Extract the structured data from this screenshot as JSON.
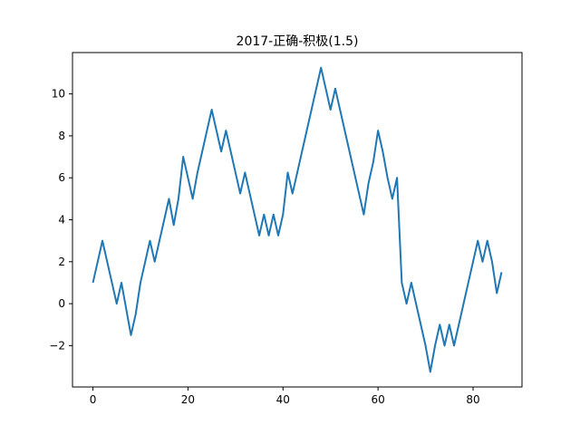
{
  "chart_data": {
    "type": "line",
    "title": "2017-正确-积极(1.5)",
    "xlabel": "",
    "ylabel": "",
    "xlim": [
      -4.3,
      90.3
    ],
    "ylim": [
      -3.97,
      11.97
    ],
    "xticks": [
      0,
      20,
      40,
      60,
      80
    ],
    "yticks": [
      -2,
      0,
      2,
      4,
      6,
      8,
      10
    ],
    "grid": false,
    "line_color": "#1f77b4",
    "series": [
      {
        "x": [
          0,
          1,
          2,
          3,
          4,
          5,
          6,
          7,
          8,
          9,
          10,
          11,
          12,
          13,
          14,
          15,
          16,
          17,
          18,
          19,
          20,
          21,
          22,
          23,
          24,
          25,
          26,
          27,
          28,
          29,
          30,
          31,
          32,
          33,
          34,
          35,
          36,
          37,
          38,
          39,
          40,
          41,
          42,
          43,
          44,
          45,
          46,
          47,
          48,
          49,
          50,
          51,
          52,
          53,
          54,
          55,
          56,
          57,
          58,
          59,
          60,
          61,
          62,
          63,
          64,
          65,
          66,
          67,
          68,
          69,
          70,
          71,
          72,
          73,
          74,
          75,
          76,
          77,
          78,
          79,
          80,
          81,
          82,
          83,
          84,
          85,
          86
        ],
        "values": [
          1,
          2,
          3,
          2,
          1,
          0,
          1,
          -0.25,
          -1.5,
          -0.5,
          1,
          2,
          3,
          2,
          3,
          4,
          5,
          3.75,
          5,
          7,
          6,
          5,
          6.25,
          7.25,
          8.25,
          9.25,
          8.25,
          7.25,
          8.25,
          7.25,
          6.25,
          5.25,
          6.25,
          5.25,
          4.25,
          3.25,
          4.25,
          3.25,
          4.25,
          3.25,
          4.25,
          6.25,
          5.25,
          6.25,
          7.25,
          8.25,
          9.25,
          10.25,
          11.25,
          10.25,
          9.25,
          10.25,
          9.25,
          8.25,
          7.25,
          6.25,
          5.25,
          4.25,
          5.75,
          6.75,
          8.25,
          7.25,
          6,
          5,
          6,
          1,
          0,
          1,
          0,
          -1,
          -2,
          -3.25,
          -2,
          -1,
          -2,
          -1,
          -2,
          -1,
          0,
          1,
          2,
          3,
          2,
          3,
          2,
          0.5,
          1.5
        ]
      }
    ]
  }
}
